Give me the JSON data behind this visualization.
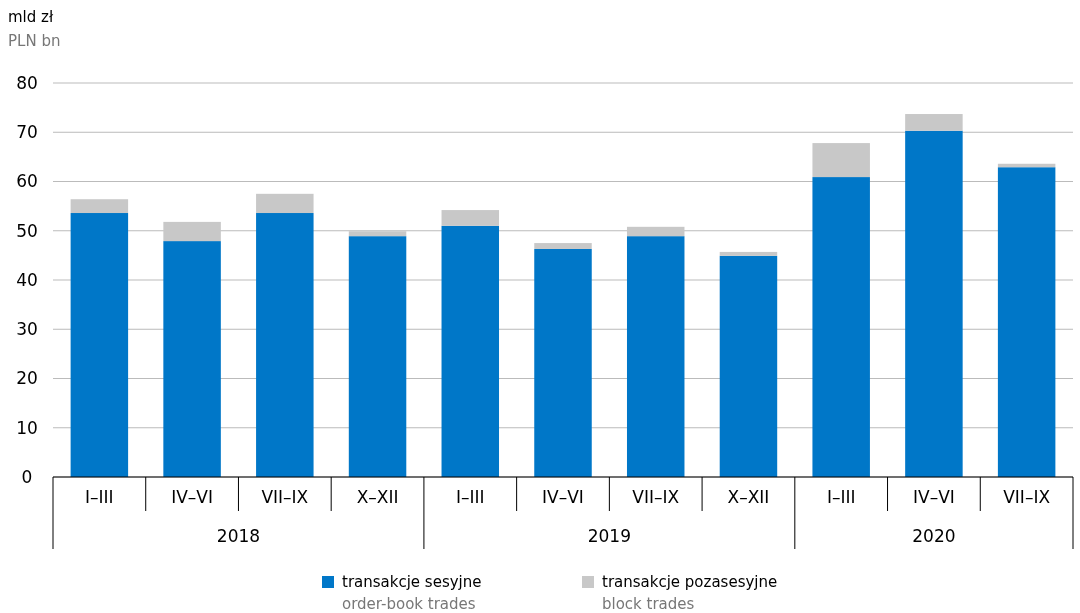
{
  "chart_data": {
    "type": "bar",
    "stacked": true,
    "ylabel": "mld zł\nPLN bn",
    "categories": [
      "I–III",
      "IV–VI",
      "VII–IX",
      "X–XII",
      "I–III",
      "IV–VI",
      "VII–IX",
      "X–XII",
      "I–III",
      "IV–VI",
      "VII–IX"
    ],
    "series": [
      {
        "name": "transakcje sesyjne\norder-book trades",
        "color": "#0077c8",
        "values": [
          53.6,
          47.9,
          53.6,
          48.9,
          51.0,
          46.3,
          48.9,
          44.9,
          60.9,
          70.3,
          62.9
        ]
      },
      {
        "name": "transakcje pozasesyjne\nblock trades",
        "color": "#c8c8c8",
        "values": [
          2.8,
          3.9,
          3.9,
          1.0,
          3.2,
          1.2,
          1.9,
          0.8,
          6.9,
          3.4,
          0.7
        ]
      }
    ],
    "annotations": [
      "2018",
      "2019",
      "2020"
    ],
    "ylim": [
      0,
      80
    ],
    "yticks": [
      0,
      10,
      20,
      30,
      40,
      50,
      60,
      70,
      80
    ],
    "grid": "y",
    "legend": "bottom"
  }
}
